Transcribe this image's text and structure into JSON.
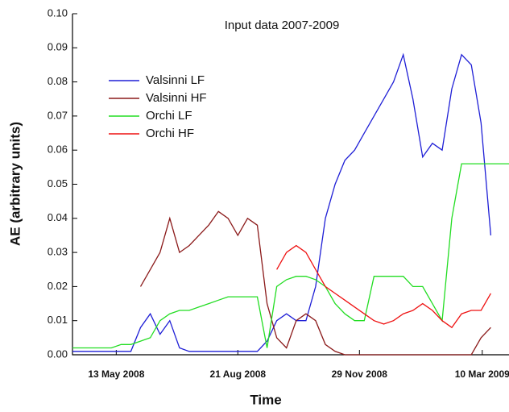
{
  "chart_data": {
    "type": "line",
    "title": "Input data 2007-2009",
    "xlabel": "Time",
    "ylabel": "AE (arbitrary units)",
    "x": [
      "2008-04-07",
      "2008-04-15",
      "2008-04-23",
      "2008-05-01",
      "2008-05-09",
      "2008-05-17",
      "2008-05-25",
      "2008-06-02",
      "2008-06-10",
      "2008-06-18",
      "2008-06-26",
      "2008-07-04",
      "2008-07-12",
      "2008-07-20",
      "2008-07-28",
      "2008-08-05",
      "2008-08-13",
      "2008-08-21",
      "2008-08-29",
      "2008-09-06",
      "2008-09-14",
      "2008-09-22",
      "2008-09-30",
      "2008-10-08",
      "2008-10-16",
      "2008-10-24",
      "2008-11-01",
      "2008-11-09",
      "2008-11-17",
      "2008-11-25",
      "2008-12-03",
      "2008-12-11",
      "2008-12-19",
      "2008-12-27",
      "2009-01-04",
      "2009-01-12",
      "2009-01-20",
      "2009-01-28",
      "2009-02-05",
      "2009-02-13",
      "2009-02-21",
      "2009-03-01",
      "2009-03-09",
      "2009-03-17",
      "2009-03-25",
      "2009-04-01"
    ],
    "series": [
      {
        "name": "Valsinni LF",
        "color": "#1f1fd6",
        "values": [
          0.001,
          0.001,
          0.001,
          0.001,
          0.001,
          0.001,
          0.001,
          0.008,
          0.012,
          0.006,
          0.01,
          0.002,
          0.001,
          0.001,
          0.001,
          0.001,
          0.001,
          0.001,
          0.001,
          0.001,
          0.004,
          0.01,
          0.012,
          0.01,
          0.01,
          0.02,
          0.04,
          0.05,
          0.057,
          0.06,
          0.065,
          0.07,
          0.075,
          0.08,
          0.088,
          0.075,
          0.058,
          0.062,
          0.06,
          0.078,
          0.088,
          0.085,
          0.068,
          0.035,
          null,
          null
        ]
      },
      {
        "name": "Valsinni HF",
        "color": "#8b1a1a",
        "values": [
          null,
          null,
          null,
          null,
          null,
          null,
          null,
          0.02,
          0.025,
          0.03,
          0.04,
          0.03,
          0.032,
          0.035,
          0.038,
          0.042,
          0.04,
          0.035,
          0.04,
          0.038,
          0.015,
          0.005,
          0.002,
          0.01,
          0.012,
          0.01,
          0.003,
          0.001,
          0,
          0,
          0,
          0,
          0,
          0,
          0,
          0,
          0,
          0,
          0,
          0,
          0,
          0,
          0.005,
          0.008,
          null,
          null
        ]
      },
      {
        "name": "Orchi LF",
        "color": "#22dd22",
        "values": [
          0.002,
          0.002,
          0.002,
          0.002,
          0.002,
          0.003,
          0.003,
          0.004,
          0.005,
          0.01,
          0.012,
          0.013,
          0.013,
          0.014,
          0.015,
          0.016,
          0.017,
          0.017,
          0.017,
          0.017,
          0.002,
          0.02,
          0.022,
          0.023,
          0.023,
          0.022,
          0.02,
          0.015,
          0.012,
          0.01,
          0.01,
          0.023,
          0.023,
          0.023,
          0.023,
          0.02,
          0.02,
          0.015,
          0.01,
          0.04,
          0.056,
          0.056,
          0.056,
          0.056,
          0.056,
          0.056
        ]
      },
      {
        "name": "Orchi HF",
        "color": "#ee1111",
        "values": [
          null,
          null,
          null,
          null,
          null,
          null,
          null,
          null,
          null,
          null,
          null,
          null,
          null,
          null,
          null,
          null,
          null,
          null,
          null,
          null,
          null,
          0.025,
          0.03,
          0.032,
          0.03,
          0.025,
          0.02,
          0.018,
          0.016,
          0.014,
          0.012,
          0.01,
          0.009,
          0.01,
          0.012,
          0.013,
          0.015,
          0.013,
          0.01,
          0.008,
          0.012,
          0.013,
          0.013,
          0.018,
          null,
          null
        ]
      }
    ],
    "xlim": [
      "2008-04-07",
      "2009-04-01"
    ],
    "xticks": [
      {
        "value": "2008-05-13",
        "label": "13 May 2008"
      },
      {
        "value": "2008-08-21",
        "label": "21 Aug 2008"
      },
      {
        "value": "2008-11-29",
        "label": "29 Nov 2008"
      },
      {
        "value": "2009-03-10",
        "label": "10 Mar 2009"
      }
    ],
    "ylim": [
      0,
      0.1
    ],
    "yticks": [
      {
        "value": 0,
        "label": "0.00"
      },
      {
        "value": 0.01,
        "label": "0.01"
      },
      {
        "value": 0.02,
        "label": "0.02"
      },
      {
        "value": 0.03,
        "label": "0.03"
      },
      {
        "value": 0.04,
        "label": "0.04"
      },
      {
        "value": 0.05,
        "label": "0.05"
      },
      {
        "value": 0.06,
        "label": "0.06"
      },
      {
        "value": 0.07,
        "label": "0.07"
      },
      {
        "value": 0.08,
        "label": "0.08"
      },
      {
        "value": 0.09,
        "label": "0.09"
      },
      {
        "value": 0.1,
        "label": "0.10"
      }
    ],
    "legend": "upper left"
  }
}
